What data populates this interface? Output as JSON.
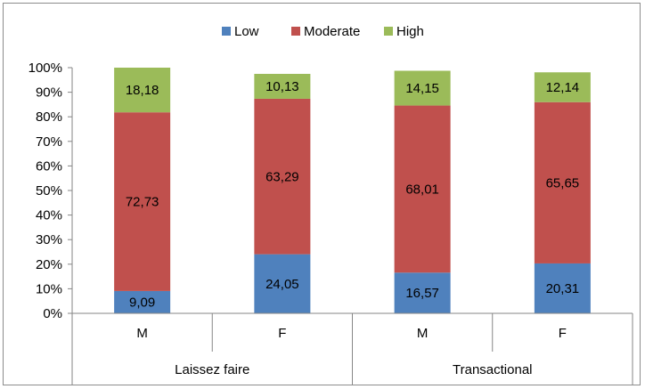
{
  "chart_data": {
    "type": "bar",
    "stacked": true,
    "percent": true,
    "groups": [
      {
        "label": "Laissez faire",
        "categories": [
          "M",
          "F"
        ]
      },
      {
        "label": "Transactional",
        "categories": [
          "M",
          "F"
        ]
      }
    ],
    "categories": [
      "M",
      "F",
      "M",
      "F"
    ],
    "series": [
      {
        "name": "Low",
        "color": "#4F81BD",
        "values": [
          9.09,
          24.05,
          16.57,
          20.31
        ],
        "labels": [
          "9,09",
          "24,05",
          "16,57",
          "20,31"
        ]
      },
      {
        "name": "Moderate",
        "color": "#C0504D",
        "values": [
          72.73,
          63.29,
          68.01,
          65.65
        ],
        "labels": [
          "72,73",
          "63,29",
          "68,01",
          "65,65"
        ]
      },
      {
        "name": "High",
        "color": "#9BBB59",
        "values": [
          18.18,
          10.13,
          14.15,
          12.14
        ],
        "labels": [
          "18,18",
          "10,13",
          "14,15",
          "12,14"
        ]
      }
    ],
    "ylim": [
      0,
      100
    ],
    "yticks": [
      "0%",
      "10%",
      "20%",
      "30%",
      "40%",
      "50%",
      "60%",
      "70%",
      "80%",
      "90%",
      "100%"
    ],
    "legend": "top",
    "grid": false
  }
}
